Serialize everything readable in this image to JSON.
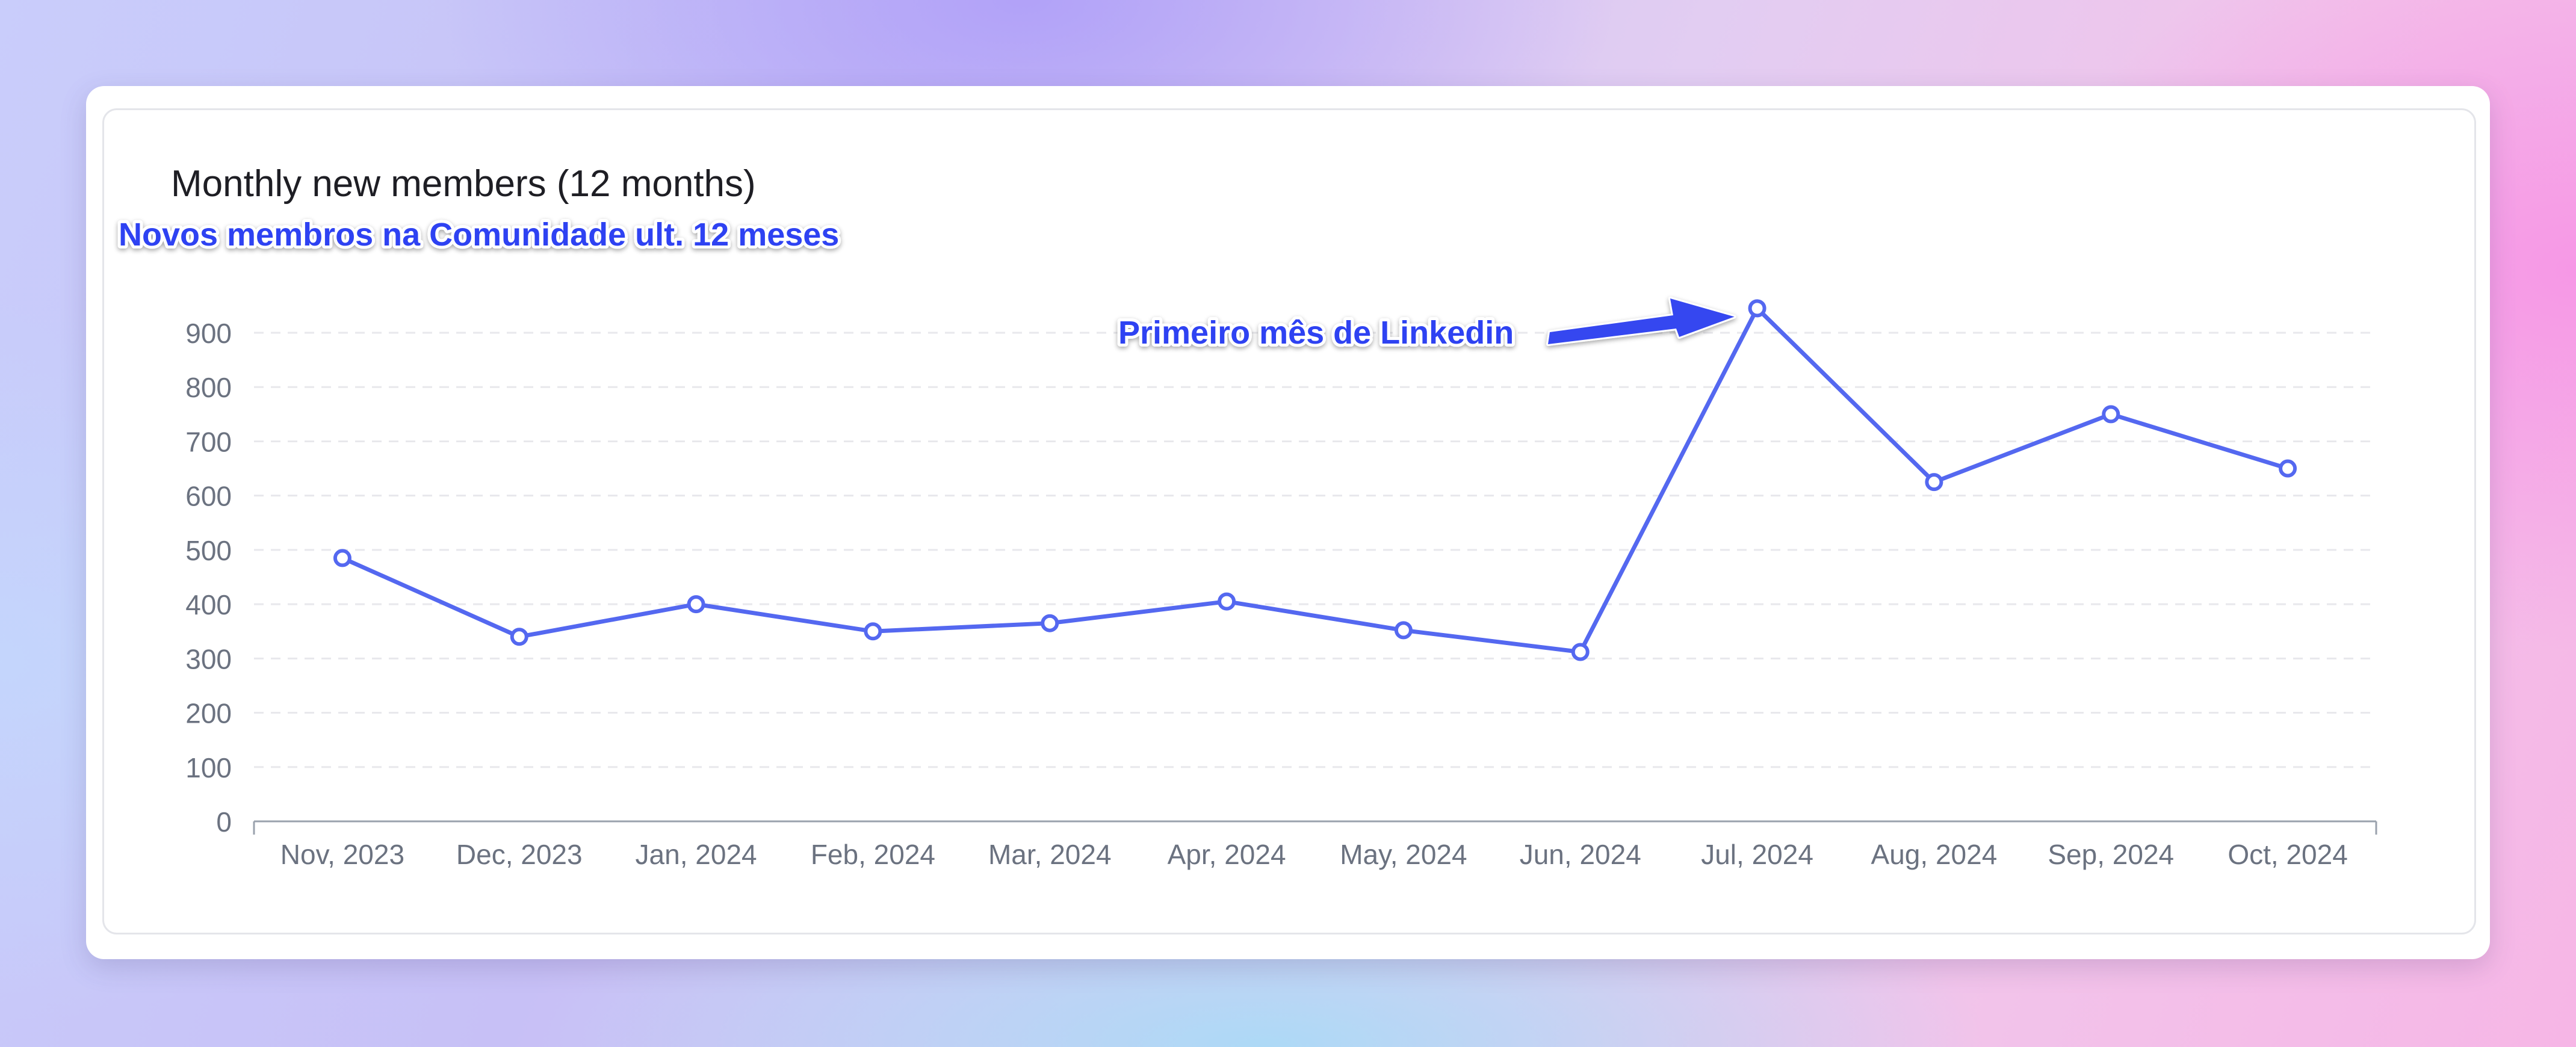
{
  "card": {
    "title": "Monthly new members (12 months)"
  },
  "annotations": {
    "subtitle_pt": "Novos membros na Comunidade ult. 12 meses",
    "peak_note": "Primeiro mês de Linkedin"
  },
  "colors": {
    "line": "#5468f0",
    "annotation_text": "#2f43f2",
    "arrow": "#3446f0",
    "grid": "#e8e8ec",
    "axis": "#9aa2ad",
    "tick_text": "#6b7280"
  },
  "chart_data": {
    "type": "line",
    "title": "Monthly new members (12 months)",
    "xlabel": "",
    "ylabel": "",
    "categories": [
      "Nov, 2023",
      "Dec, 2023",
      "Jan, 2024",
      "Feb, 2024",
      "Mar, 2024",
      "Apr, 2024",
      "May, 2024",
      "Jun, 2024",
      "Jul, 2024",
      "Aug, 2024",
      "Sep, 2024",
      "Oct, 2024"
    ],
    "values": [
      485,
      340,
      400,
      350,
      365,
      405,
      352,
      312,
      945,
      625,
      750,
      650
    ],
    "ylim": [
      0,
      900
    ],
    "yticks": [
      0,
      100,
      200,
      300,
      400,
      500,
      600,
      700,
      800,
      900
    ],
    "grid": true,
    "legend": "none",
    "annotation": {
      "text": "Primeiro mês de Linkedin",
      "category": "Jul, 2024"
    }
  }
}
